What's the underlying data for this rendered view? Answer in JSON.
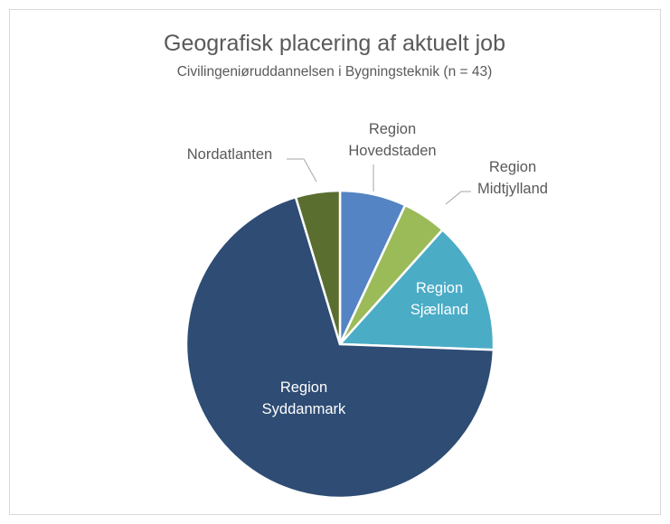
{
  "chart_data": {
    "type": "pie",
    "title": "Geografisk placering af aktuelt job",
    "subtitle": "Civilingeniøruddannelsen i Bygningsteknik (n = 43)",
    "categories": [
      "Region Hovedstaden",
      "Region Midtjylland",
      "Region Sjælland",
      "Region Syddanmark",
      "Nordatlanten"
    ],
    "values": [
      3,
      2,
      6,
      30,
      2
    ],
    "colors": [
      "#5584c4",
      "#9bbb59",
      "#4bacc6",
      "#2e4c74",
      "#5a6e2f"
    ]
  }
}
